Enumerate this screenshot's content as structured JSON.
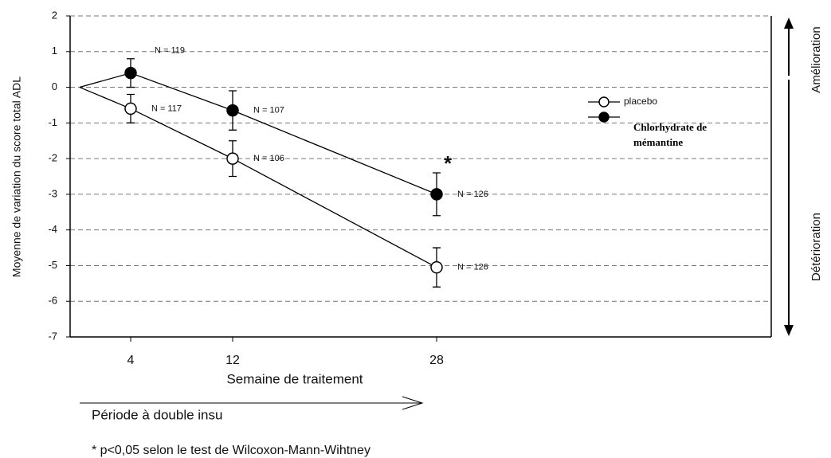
{
  "chart_data": {
    "type": "line",
    "y_label": "Moyenne de variation du score total ADL",
    "x_label": "Semaine de traitement",
    "period_label": "Période à double insu",
    "footnote": "* p<0,05 selon le test de Wilcoxon-Mann-Wihtney",
    "significance_mark": "*",
    "right_labels": [
      "Amélioration",
      "Détérioration"
    ],
    "x": [
      0,
      4,
      12,
      28
    ],
    "xlim": [
      -0.75,
      54.25
    ],
    "xticks": [
      4,
      12,
      28
    ],
    "ylim": [
      -7,
      2
    ],
    "yticks": [
      -7,
      -6,
      -5,
      -4,
      -3,
      -2,
      -1,
      0,
      1,
      2
    ],
    "grid": true,
    "series": [
      {
        "name": "placebo",
        "color": "#000000",
        "marker_fill": "#ffffff",
        "values": [
          0,
          -0.6,
          -2.0,
          -5.05
        ],
        "errors": [
          null,
          0.4,
          0.5,
          0.55
        ],
        "point_labels": [
          null,
          "N = 117",
          "N = 106",
          "N = 126"
        ]
      },
      {
        "name": "Chlorhydrate de mémantine",
        "color": "#000000",
        "marker_fill": "#000000",
        "values": [
          0,
          0.4,
          -0.65,
          -3.0
        ],
        "errors": [
          null,
          0.4,
          0.55,
          0.6
        ],
        "point_labels": [
          null,
          "N = 119",
          "N = 107",
          "N = 126"
        ]
      }
    ]
  }
}
